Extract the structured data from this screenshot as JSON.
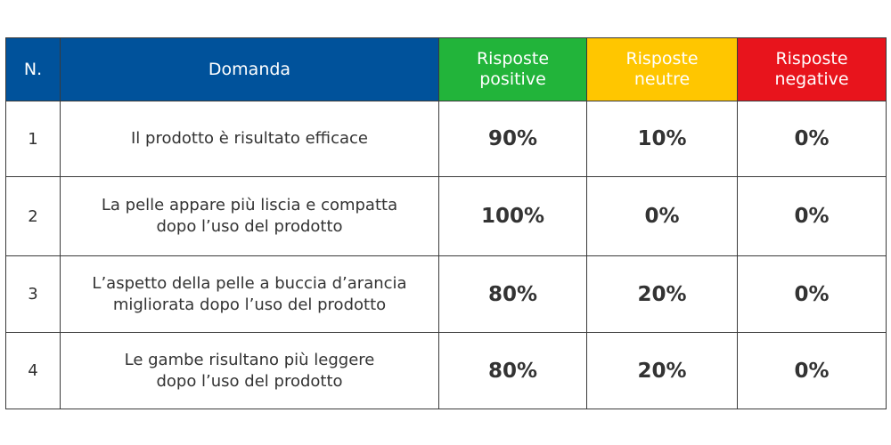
{
  "header": {
    "num_label": "N.",
    "question_label": "Domanda",
    "positive_label": [
      "Risposte",
      "positive"
    ],
    "neutral_label": [
      "Risposte",
      "neutre"
    ],
    "negative_label": [
      "Risposte",
      "negative"
    ]
  },
  "colors": {
    "header_blue": "#00529b",
    "positive_green": "#22b43a",
    "neutral_yellow": "#ffc600",
    "negative_red": "#e8141c"
  },
  "rows": [
    {
      "num": "1",
      "question": [
        "Il prodotto è risultato efficace"
      ],
      "positive": "90%",
      "neutral": "10%",
      "negative": "0%"
    },
    {
      "num": "2",
      "question": [
        "La pelle appare più liscia e compatta",
        "dopo l’uso del prodotto"
      ],
      "positive": "100%",
      "neutral": "0%",
      "negative": "0%"
    },
    {
      "num": "3",
      "question": [
        "L’aspetto della pelle a buccia d’arancia",
        "migliorata dopo l’uso del prodotto"
      ],
      "positive": "80%",
      "neutral": "20%",
      "negative": "0%"
    },
    {
      "num": "4",
      "question": [
        "Le gambe risultano più leggere",
        "dopo l’uso del prodotto"
      ],
      "positive": "80%",
      "neutral": "20%",
      "negative": "0%"
    }
  ]
}
